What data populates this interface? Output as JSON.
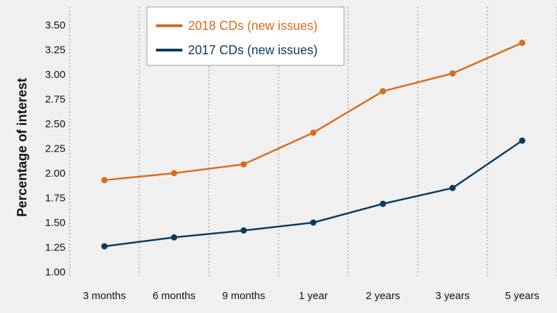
{
  "chart_data": {
    "type": "line",
    "title": "",
    "xlabel": "",
    "ylabel": "Percentage of interest",
    "categories": [
      "3 months",
      "6 months",
      "9 months",
      "1 year",
      "2 years",
      "3 years",
      "5 years"
    ],
    "ylim": [
      1.0,
      3.5
    ],
    "yticks": [
      "1.00",
      "1.25",
      "1.50",
      "1.75",
      "2.00",
      "2.25",
      "2.50",
      "2.75",
      "3.00",
      "3.25",
      "3.50"
    ],
    "grid": true,
    "legend_position": "top-center",
    "series": [
      {
        "name": "2018 CDs (new issues)",
        "color": "#d96c1b",
        "values": [
          1.93,
          2.0,
          2.09,
          2.41,
          2.83,
          3.01,
          3.32
        ]
      },
      {
        "name": "2017 CDs (new issues)",
        "color": "#0e3a5c",
        "values": [
          1.26,
          1.35,
          1.42,
          1.5,
          1.69,
          1.85,
          2.33
        ]
      }
    ]
  }
}
